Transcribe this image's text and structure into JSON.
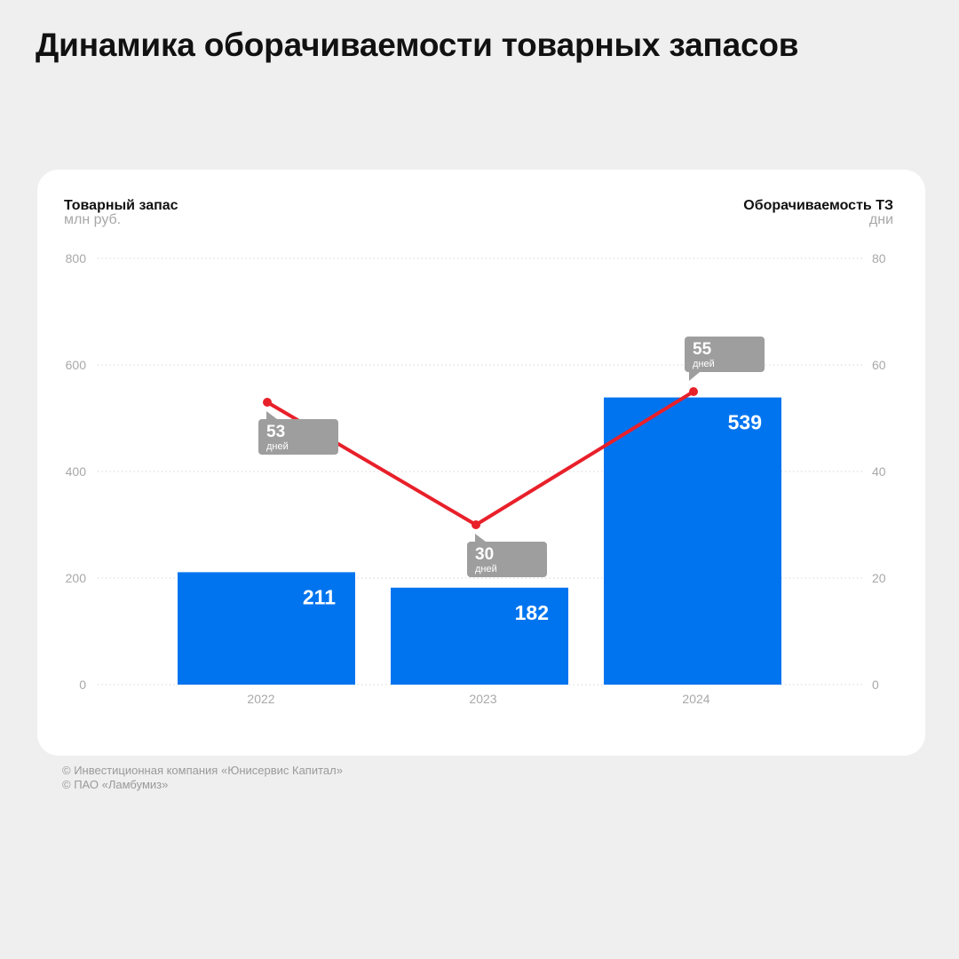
{
  "title": "Динамика оборачиваемости товарных запасов",
  "left_axis": {
    "title": "Товарный запас",
    "unit": "млн руб."
  },
  "right_axis": {
    "title": "Оборачиваемость ТЗ",
    "unit": "дни"
  },
  "sources": [
    "© Инвестиционная компания «Юнисервис Капитал»",
    "© ПАО «Ламбумиз»"
  ],
  "colors": {
    "bar": "#0074ef",
    "line": "#e8202a",
    "label_box": "#9e9e9e",
    "background": "#efefef",
    "card": "#ffffff"
  },
  "chart_data": {
    "type": "bar+line",
    "categories": [
      "2022",
      "2023",
      "2024"
    ],
    "series": [
      {
        "name": "Товарный запас",
        "type": "bar",
        "axis": "left",
        "values": [
          211,
          182,
          539
        ]
      },
      {
        "name": "Оборачиваемость ТЗ",
        "type": "line",
        "axis": "right",
        "values": [
          53,
          30,
          55
        ],
        "label_unit": "дней"
      }
    ],
    "ylim_left": [
      0,
      800
    ],
    "yticks_left": [
      0,
      200,
      400,
      600,
      800
    ],
    "ylim_right": [
      0,
      80
    ],
    "yticks_right": [
      0,
      20,
      40,
      60,
      80
    ],
    "grid": true
  }
}
